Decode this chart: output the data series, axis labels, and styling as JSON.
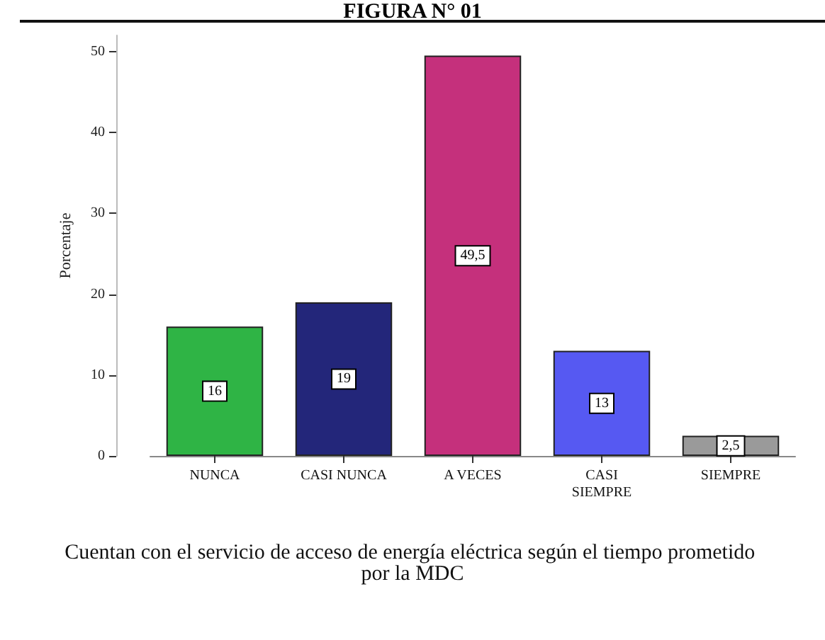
{
  "chart_data": {
    "type": "bar",
    "title": "FIGURA N° 01",
    "xlabel": "Cuentan con el servicio de acceso de energía eléctrica según el tiempo prometido por la MDC",
    "ylabel": "Porcentaje",
    "categories": [
      "NUNCA",
      "CASI NUNCA",
      "A VECES",
      "CASI\nSIEMPRE",
      "SIEMPRE"
    ],
    "values": [
      16,
      19,
      49.5,
      13,
      2.5
    ],
    "colors": [
      "#2fb445",
      "#23267a",
      "#c5307c",
      "#5659f2",
      "#9a9a9a"
    ],
    "value_labels": [
      "16",
      "19",
      "49,5",
      "13",
      "2,5"
    ],
    "ylim": [
      0,
      52
    ],
    "yticks": [
      0,
      10,
      20,
      30,
      40,
      50
    ],
    "grid": false
  }
}
